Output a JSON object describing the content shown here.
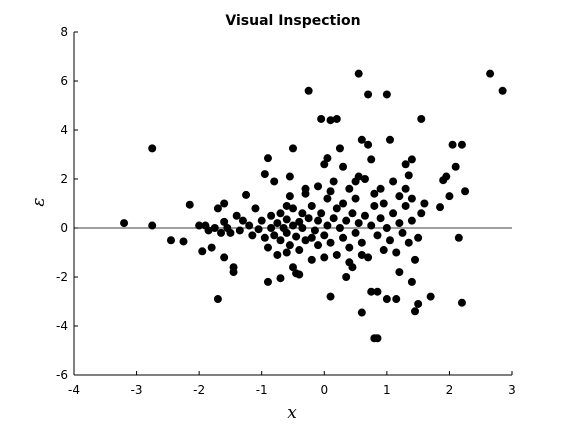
{
  "chart_data": {
    "type": "scatter",
    "title": "Visual Inspection",
    "xlabel": "x",
    "ylabel": "ε",
    "xlim": [
      -4,
      3
    ],
    "ylim": [
      -6,
      8
    ],
    "xticks": [
      -4,
      -3,
      -2,
      -1,
      0,
      1,
      2,
      3
    ],
    "yticks": [
      -6,
      -4,
      -2,
      0,
      2,
      4,
      6,
      8
    ],
    "reference_line_y": 0,
    "marker_color": "#000000",
    "points": [
      [
        -3.2,
        0.2
      ],
      [
        -2.75,
        3.25
      ],
      [
        -2.75,
        0.1
      ],
      [
        -2.45,
        -0.5
      ],
      [
        -2.25,
        -0.55
      ],
      [
        -2.15,
        0.95
      ],
      [
        -1.95,
        -0.95
      ],
      [
        -1.9,
        0.1
      ],
      [
        -1.8,
        -0.8
      ],
      [
        -1.7,
        -2.9
      ],
      [
        -1.7,
        0.8
      ],
      [
        -1.6,
        1.0
      ],
      [
        -1.6,
        -1.2
      ],
      [
        -1.45,
        -1.6
      ],
      [
        -1.45,
        -1.8
      ],
      [
        -1.4,
        0.5
      ],
      [
        -1.3,
        0.3
      ],
      [
        -1.25,
        1.35
      ],
      [
        -1.1,
        0.8
      ],
      [
        -0.95,
        2.2
      ],
      [
        -0.9,
        2.85
      ],
      [
        -0.9,
        -0.8
      ],
      [
        -0.9,
        -2.2
      ],
      [
        -0.8,
        1.9
      ],
      [
        -0.75,
        -1.1
      ],
      [
        -0.7,
        -2.05
      ],
      [
        -0.6,
        0.9
      ],
      [
        -0.55,
        1.3
      ],
      [
        -0.55,
        2.1
      ],
      [
        -0.5,
        3.25
      ],
      [
        -0.5,
        -1.6
      ],
      [
        -0.45,
        -1.85
      ],
      [
        -0.4,
        -1.9
      ],
      [
        -0.35,
        0.6
      ],
      [
        -0.3,
        1.4
      ],
      [
        -0.25,
        5.6
      ],
      [
        -0.2,
        -0.4
      ],
      [
        -0.1,
        1.7
      ],
      [
        -0.05,
        4.45
      ],
      [
        0.0,
        2.6
      ],
      [
        0.05,
        2.85
      ],
      [
        0.1,
        4.4
      ],
      [
        0.1,
        -2.8
      ],
      [
        0.15,
        1.9
      ],
      [
        0.2,
        4.45
      ],
      [
        0.25,
        3.25
      ],
      [
        0.3,
        2.5
      ],
      [
        0.35,
        -2.0
      ],
      [
        0.4,
        1.6
      ],
      [
        0.45,
        -1.6
      ],
      [
        0.5,
        1.9
      ],
      [
        0.55,
        2.1
      ],
      [
        0.55,
        6.3
      ],
      [
        0.6,
        3.6
      ],
      [
        0.6,
        -3.45
      ],
      [
        0.65,
        2.0
      ],
      [
        0.7,
        5.45
      ],
      [
        0.7,
        3.4
      ],
      [
        0.75,
        2.8
      ],
      [
        0.75,
        -2.6
      ],
      [
        0.8,
        -4.5
      ],
      [
        0.85,
        -4.5
      ],
      [
        0.85,
        -2.6
      ],
      [
        0.9,
        1.6
      ],
      [
        0.95,
        1.0
      ],
      [
        1.0,
        5.45
      ],
      [
        1.0,
        -2.9
      ],
      [
        1.05,
        3.6
      ],
      [
        1.1,
        1.9
      ],
      [
        1.15,
        -2.9
      ],
      [
        1.2,
        -1.8
      ],
      [
        1.3,
        1.6
      ],
      [
        1.3,
        2.6
      ],
      [
        1.35,
        2.15
      ],
      [
        1.4,
        2.8
      ],
      [
        1.4,
        -2.2
      ],
      [
        1.45,
        -3.4
      ],
      [
        1.5,
        -3.1
      ],
      [
        1.55,
        4.45
      ],
      [
        1.6,
        1.0
      ],
      [
        1.7,
        -2.8
      ],
      [
        1.85,
        0.85
      ],
      [
        1.9,
        1.95
      ],
      [
        1.95,
        2.1
      ],
      [
        2.0,
        1.3
      ],
      [
        2.05,
        3.4
      ],
      [
        2.1,
        2.5
      ],
      [
        2.15,
        -0.4
      ],
      [
        2.2,
        3.4
      ],
      [
        2.2,
        -3.05
      ],
      [
        2.25,
        1.5
      ],
      [
        2.65,
        6.3
      ],
      [
        2.85,
        5.6
      ],
      [
        -1.55,
        0.0
      ],
      [
        -1.5,
        -0.2
      ],
      [
        -1.35,
        -0.1
      ],
      [
        -1.2,
        0.1
      ],
      [
        -1.15,
        -0.3
      ],
      [
        -1.05,
        -0.05
      ],
      [
        -1.0,
        0.3
      ],
      [
        -0.95,
        -0.4
      ],
      [
        -0.85,
        0.5
      ],
      [
        -0.85,
        0.0
      ],
      [
        -0.8,
        -0.3
      ],
      [
        -0.75,
        0.2
      ],
      [
        -0.7,
        0.6
      ],
      [
        -0.7,
        -0.5
      ],
      [
        -0.65,
        0.0
      ],
      [
        -0.6,
        -0.2
      ],
      [
        -0.6,
        0.35
      ],
      [
        -0.55,
        -0.7
      ],
      [
        -0.5,
        0.1
      ],
      [
        -0.5,
        0.8
      ],
      [
        -0.45,
        -0.35
      ],
      [
        -0.4,
        0.25
      ],
      [
        -0.4,
        -0.9
      ],
      [
        -0.35,
        0.0
      ],
      [
        -0.3,
        -0.5
      ],
      [
        -0.25,
        0.4
      ],
      [
        -0.2,
        0.9
      ],
      [
        -0.15,
        -0.1
      ],
      [
        -0.1,
        0.3
      ],
      [
        -0.1,
        -0.7
      ],
      [
        -0.05,
        0.6
      ],
      [
        0.0,
        -0.3
      ],
      [
        0.05,
        0.1
      ],
      [
        0.05,
        1.2
      ],
      [
        0.1,
        -0.6
      ],
      [
        0.15,
        0.4
      ],
      [
        0.2,
        -1.1
      ],
      [
        0.2,
        0.8
      ],
      [
        0.25,
        0.0
      ],
      [
        0.3,
        -0.4
      ],
      [
        0.3,
        1.0
      ],
      [
        0.35,
        0.3
      ],
      [
        0.4,
        -0.8
      ],
      [
        0.45,
        0.6
      ],
      [
        0.5,
        -0.2
      ],
      [
        0.5,
        1.2
      ],
      [
        0.55,
        0.2
      ],
      [
        0.6,
        -0.6
      ],
      [
        0.65,
        0.5
      ],
      [
        0.7,
        -1.2
      ],
      [
        0.75,
        0.1
      ],
      [
        0.8,
        0.9
      ],
      [
        0.85,
        -0.3
      ],
      [
        0.9,
        0.4
      ],
      [
        0.95,
        -0.9
      ],
      [
        1.0,
        0.0
      ],
      [
        1.05,
        -0.5
      ],
      [
        1.1,
        0.6
      ],
      [
        1.15,
        -1.0
      ],
      [
        1.2,
        0.2
      ],
      [
        1.25,
        -0.2
      ],
      [
        1.3,
        0.9
      ],
      [
        1.35,
        -0.6
      ],
      [
        1.4,
        0.3
      ],
      [
        1.45,
        -1.3
      ],
      [
        1.5,
        -0.4
      ],
      [
        1.55,
        0.6
      ],
      [
        -2.0,
        0.1
      ],
      [
        -1.85,
        -0.1
      ],
      [
        -1.75,
        0.0
      ],
      [
        -1.65,
        -0.2
      ],
      [
        -1.6,
        0.25
      ],
      [
        -0.3,
        1.6
      ],
      [
        -0.2,
        -1.3
      ],
      [
        0.1,
        1.5
      ],
      [
        0.4,
        -1.4
      ],
      [
        0.8,
        1.4
      ],
      [
        1.2,
        1.3
      ],
      [
        1.4,
        1.2
      ],
      [
        -0.6,
        -1.0
      ],
      [
        0.0,
        -1.2
      ],
      [
        0.6,
        -1.1
      ]
    ]
  }
}
